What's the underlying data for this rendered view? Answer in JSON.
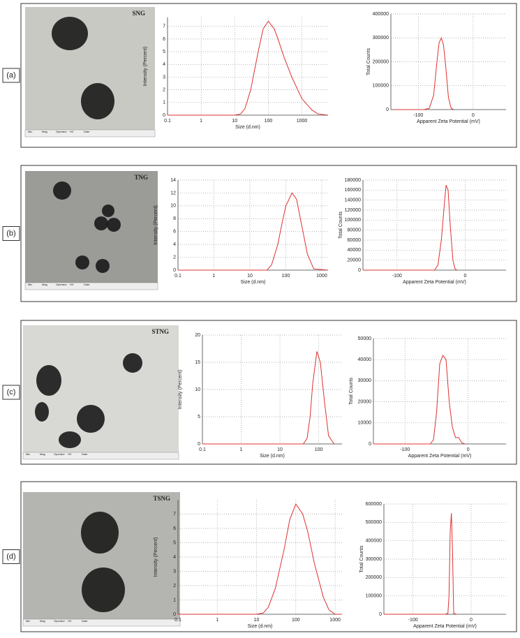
{
  "panels": [
    {
      "label": "(a)",
      "image_label": "SNG"
    },
    {
      "label": "(b)",
      "image_label": "TNG"
    },
    {
      "label": "(c)",
      "image_label": "STNG"
    },
    {
      "label": "(d)",
      "image_label": "TSNG"
    }
  ],
  "micrograph_footer": [
    "Mic",
    "Mag",
    "Operator",
    "HV",
    "Date"
  ],
  "chart_data": [
    {
      "type": "line",
      "x_label": "Size (d.nm)",
      "y_label": "Intensity (Percent)",
      "xlog": true,
      "grid": true,
      "color": "#e03030",
      "x": [
        0.1,
        1,
        10,
        15,
        20,
        30,
        50,
        70,
        100,
        150,
        200,
        300,
        500,
        1000,
        2000,
        3000,
        6000
      ],
      "values": [
        0,
        0,
        0,
        0.1,
        0.5,
        2.0,
        5.0,
        6.8,
        7.4,
        6.8,
        5.9,
        4.5,
        3.0,
        1.3,
        0.4,
        0.1,
        0
      ],
      "xlim": [
        0.1,
        6000
      ],
      "xticks": [
        0.1,
        1,
        10,
        100,
        1000
      ],
      "ylim": [
        0,
        7.7
      ],
      "yticks": [
        0,
        1,
        2,
        3,
        4,
        5,
        6,
        7
      ]
    },
    {
      "type": "line",
      "x_label": "Apparent Zeta Potential (mV)",
      "y_label": "Total Counts",
      "xlog": false,
      "grid": true,
      "color": "#e03030",
      "x": [
        -145,
        -90,
        -80,
        -72,
        -66,
        -62,
        -58,
        -54,
        -50,
        -45,
        -40,
        -35
      ],
      "values": [
        0,
        0,
        5000,
        60000,
        200000,
        280000,
        300000,
        270000,
        180000,
        50000,
        5000,
        0
      ],
      "xlim": [
        -150,
        60
      ],
      "xticks": [
        -100,
        0
      ],
      "ylim": [
        0,
        400000
      ],
      "yticks": [
        0,
        100000,
        200000,
        300000,
        400000
      ]
    },
    {
      "type": "line",
      "x_label": "Size (d.nm)",
      "y_label": "Intensity (Percent)",
      "xlog": true,
      "grid": true,
      "color": "#e03030",
      "x": [
        0.1,
        1,
        10,
        30,
        40,
        60,
        80,
        100,
        150,
        200,
        300,
        400,
        600,
        1500
      ],
      "values": [
        0,
        0,
        0,
        0,
        0.8,
        4,
        7.5,
        10,
        12,
        11,
        6,
        2.5,
        0.2,
        0
      ],
      "xlim": [
        0.1,
        1500
      ],
      "xticks": [
        0.1,
        1,
        10,
        100,
        1000
      ],
      "ylim": [
        0,
        14
      ],
      "yticks": [
        0,
        2,
        4,
        6,
        8,
        10,
        12,
        14
      ]
    },
    {
      "type": "line",
      "x_label": "Apparent Zeta Potential (mV)",
      "y_label": "Total Counts",
      "xlog": false,
      "grid": true,
      "color": "#e03030",
      "x": [
        -150,
        -45,
        -40,
        -35,
        -30,
        -28,
        -25,
        -22,
        -18,
        -15,
        -12
      ],
      "values": [
        0,
        0,
        10000,
        60000,
        140000,
        170000,
        160000,
        90000,
        20000,
        3000,
        0
      ],
      "xlim": [
        -150,
        60
      ],
      "xticks": [
        -100,
        0
      ],
      "ylim": [
        0,
        180000
      ],
      "yticks": [
        0,
        20000,
        40000,
        60000,
        80000,
        100000,
        120000,
        140000,
        160000,
        180000
      ]
    },
    {
      "type": "line",
      "x_label": "Size (d.nm)",
      "y_label": "Intensity (Percent)",
      "xlog": true,
      "grid": true,
      "color": "#e03030",
      "x": [
        0.1,
        1,
        10,
        40,
        50,
        60,
        70,
        90,
        110,
        140,
        180,
        250
      ],
      "values": [
        0,
        0,
        0,
        0,
        1,
        5,
        11,
        17,
        15,
        8,
        1.5,
        0
      ],
      "xlim": [
        0.1,
        400
      ],
      "xticks": [
        0.1,
        1,
        10,
        100
      ],
      "ylim": [
        0,
        20
      ],
      "yticks": [
        0,
        5,
        10,
        15,
        20
      ]
    },
    {
      "type": "line",
      "x_label": "Apparent Zeta Potential (mV)",
      "y_label": "Total Counts",
      "xlog": false,
      "grid": true,
      "color": "#e03030",
      "x": [
        -150,
        -60,
        -55,
        -50,
        -45,
        -40,
        -35,
        -30,
        -25,
        -20,
        -15,
        -10,
        -5
      ],
      "values": [
        0,
        0,
        2000,
        15000,
        38000,
        42000,
        40000,
        20000,
        8000,
        3000,
        3000,
        500,
        0
      ],
      "xlim": [
        -150,
        60
      ],
      "xticks": [
        -100,
        0
      ],
      "ylim": [
        0,
        50000
      ],
      "yticks": [
        0,
        10000,
        20000,
        30000,
        40000,
        50000
      ]
    },
    {
      "type": "line",
      "x_label": "Size (d.nm)",
      "y_label": "Intensity (Percent)",
      "xlog": true,
      "grid": true,
      "color": "#e03030",
      "x": [
        0.1,
        1,
        10,
        15,
        20,
        30,
        50,
        70,
        100,
        150,
        200,
        300,
        500,
        700,
        1000,
        1500
      ],
      "values": [
        0,
        0,
        0,
        0.1,
        0.5,
        1.8,
        4.5,
        6.6,
        7.7,
        7.0,
        5.8,
        3.5,
        1.2,
        0.3,
        0,
        0
      ],
      "xlim": [
        0.1,
        1500
      ],
      "xticks": [
        0.1,
        1,
        10,
        100,
        1000
      ],
      "ylim": [
        0,
        8
      ],
      "yticks": [
        0,
        1,
        2,
        3,
        4,
        5,
        6,
        7
      ]
    },
    {
      "type": "line",
      "x_label": "Apparent Zeta Potential (mV)",
      "y_label": "Total Counts",
      "xlog": false,
      "grid": true,
      "color": "#e03030",
      "x": [
        -150,
        -45,
        -40,
        -38,
        -36,
        -34,
        -32,
        -30,
        -25
      ],
      "values": [
        0,
        0,
        5000,
        100000,
        450000,
        550000,
        350000,
        5000,
        0
      ],
      "xlim": [
        -150,
        60
      ],
      "xticks": [
        -100,
        0
      ],
      "ylim": [
        0,
        600000
      ],
      "yticks": [
        0,
        100000,
        200000,
        300000,
        400000,
        500000,
        600000
      ]
    }
  ]
}
